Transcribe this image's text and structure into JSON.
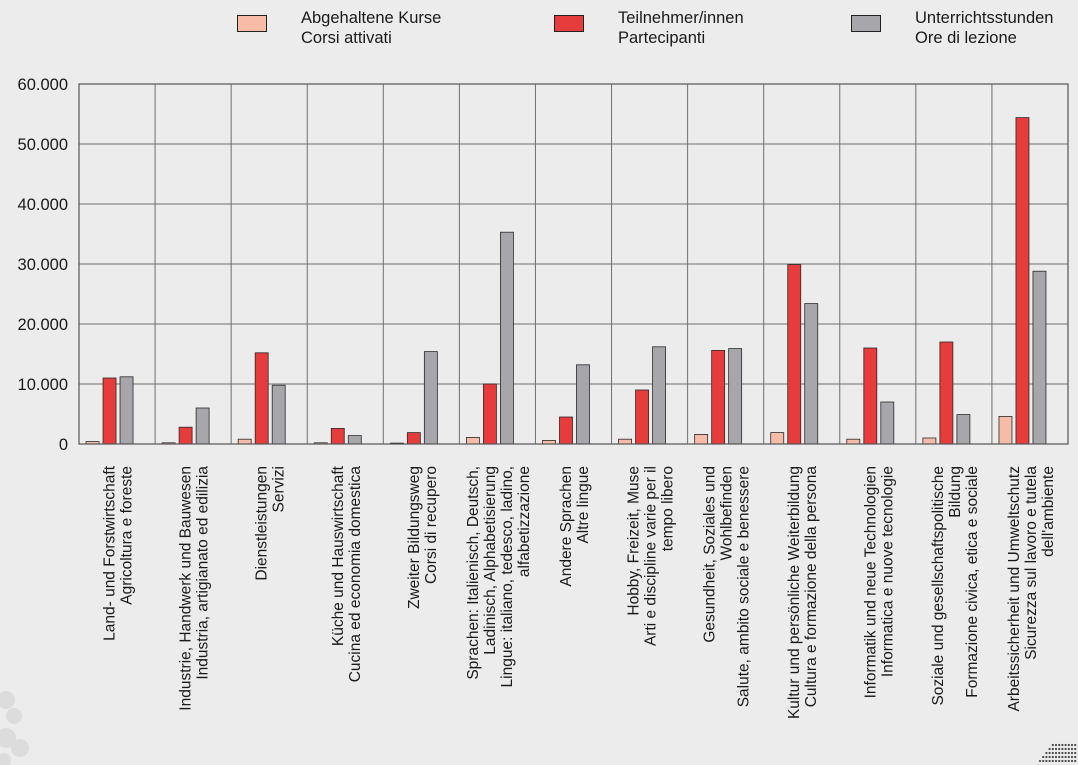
{
  "colors": {
    "background": "#ececec",
    "corsi": "#f7bca8",
    "partecipanti": "#e63c3c",
    "ore": "#a6a6ab",
    "grid": "#6f6f6f"
  },
  "chart_data": {
    "type": "bar",
    "title": "",
    "xlabel": "",
    "ylabel": "",
    "ylim": [
      0,
      60000
    ],
    "yticks": [
      "0",
      "10.000",
      "20.000",
      "30.000",
      "40.000",
      "50.000",
      "60.000"
    ],
    "grid": true,
    "legend_position": "top",
    "categories": [
      [
        "Land- und Forstwirtschaft",
        "Agricoltura e foreste"
      ],
      [
        "Industrie, Handwerk und Bauwesen",
        "Industria, artigianato ed edilizia"
      ],
      [
        "Dienstleistungen",
        "Servizi"
      ],
      [
        "Küche und Hauswirtschaft",
        "Cucina ed economia domestica"
      ],
      [
        "Zweiter Bildungsweg",
        "Corsi di recupero"
      ],
      [
        "Sprachen: Italienisch, Deutsch,",
        "Ladinisch, Alphabetisierung",
        "Lingue: italiano, tedesco, ladino,",
        "alfabetizzazione"
      ],
      [
        "Andere Sprachen",
        "Altre lingue"
      ],
      [
        "Hobby, Freizeit, Muse",
        "Arti e discipline varie per il",
        "tempo libero"
      ],
      [
        "Gesundheit, Soziales und",
        "Wohlbefinden",
        "Salute, ambito sociale e benessere"
      ],
      [
        "Kultur und persönliche Weiterbildung",
        "Cultura e formazione della persona"
      ],
      [
        "Informatik und neue Technologien",
        "Informatica e nuove tecnologie"
      ],
      [
        "Soziale und gesellschaftspolitische",
        "Bildung",
        "Formazione civica, etica e sociale"
      ],
      [
        "Arbeitssicherheit und Umweltschutz",
        "Sicurezza sul lavoro e tutela",
        "dell'ambiente"
      ]
    ],
    "series": [
      {
        "name": "Abgehaltene Kurse / Corsi attivati",
        "name_lines": [
          "Abgehaltene Kurse",
          "Corsi attivati"
        ],
        "color": "#f7bca8",
        "values": [
          400,
          200,
          800,
          200,
          150,
          1100,
          600,
          800,
          1600,
          1900,
          800,
          1000,
          4600
        ]
      },
      {
        "name": "Teilnehmer/innen / Partecipanti",
        "name_lines": [
          "Teilnehmer/innen",
          "Partecipanti"
        ],
        "color": "#e63c3c",
        "values": [
          11000,
          2800,
          15200,
          2600,
          1900,
          10000,
          4500,
          9000,
          15600,
          29900,
          16000,
          17000,
          54400
        ]
      },
      {
        "name": "Unterrichtsstunden / Ore di lezione",
        "name_lines": [
          "Unterrichtsstunden",
          "Ore di lezione"
        ],
        "color": "#a6a6ab",
        "values": [
          11200,
          6000,
          9800,
          1400,
          15400,
          35300,
          13200,
          16200,
          15900,
          23400,
          7000,
          4900,
          28800
        ]
      }
    ]
  }
}
